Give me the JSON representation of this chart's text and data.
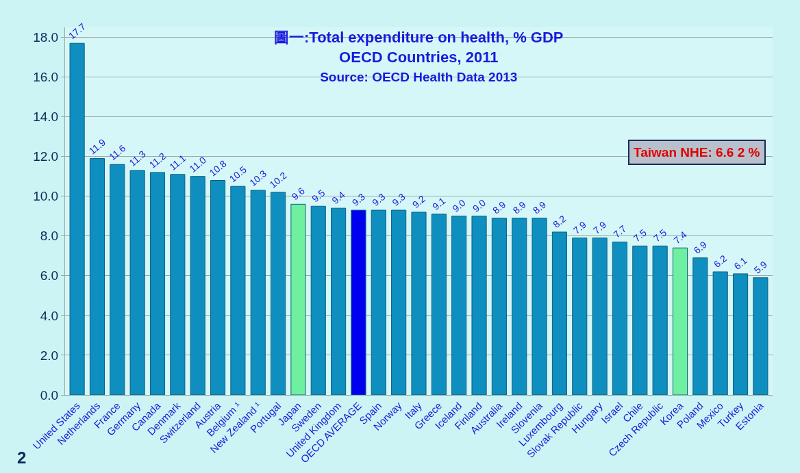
{
  "chart_data": {
    "type": "bar",
    "title": "圖一:Total expenditure on health, % GDP\nOECD Countries, 2011",
    "subtitle": "Source: OECD Health Data 2013",
    "categories": [
      "United States",
      "Netherlands",
      "France",
      "Germany",
      "Canada",
      "Denmark",
      "Switzerland",
      "Austria",
      "Belgium ¹",
      "New Zealand ¹",
      "Portugal",
      "Japan",
      "Sweden",
      "United Kingdom",
      "OECD AVERAGE",
      "Spain",
      "Norway",
      "Italy",
      "Greece",
      "Iceland",
      "Finland",
      "Australia",
      "Ireland",
      "Slovenia",
      "Luxembourg",
      "Slovak Republic",
      "Hungary",
      "Israel",
      "Chile",
      "Czech Republic",
      "Korea",
      "Poland",
      "Mexico",
      "Turkey",
      "Estonia"
    ],
    "values": [
      17.7,
      11.9,
      11.6,
      11.3,
      11.2,
      11.1,
      11.0,
      10.8,
      10.5,
      10.3,
      10.2,
      9.6,
      9.5,
      9.4,
      9.3,
      9.3,
      9.3,
      9.2,
      9.1,
      9.0,
      9.0,
      8.9,
      8.9,
      8.9,
      8.2,
      7.9,
      7.9,
      7.7,
      7.5,
      7.5,
      7.4,
      6.9,
      6.2,
      6.1,
      5.9
    ],
    "colors": [
      "#0f8fbf",
      "#0f8fbf",
      "#0f8fbf",
      "#0f8fbf",
      "#0f8fbf",
      "#0f8fbf",
      "#0f8fbf",
      "#0f8fbf",
      "#0f8fbf",
      "#0f8fbf",
      "#0f8fbf",
      "#6ef0a0",
      "#0f8fbf",
      "#0f8fbf",
      "#0000ee",
      "#0f8fbf",
      "#0f8fbf",
      "#0f8fbf",
      "#0f8fbf",
      "#0f8fbf",
      "#0f8fbf",
      "#0f8fbf",
      "#0f8fbf",
      "#0f8fbf",
      "#0f8fbf",
      "#0f8fbf",
      "#0f8fbf",
      "#0f8fbf",
      "#0f8fbf",
      "#0f8fbf",
      "#6ef0a0",
      "#0f8fbf",
      "#0f8fbf",
      "#0f8fbf",
      "#0f8fbf"
    ],
    "value_labels": [
      "17.7",
      "11.9",
      "11.6",
      "11.3",
      "11.2",
      "11.1",
      "11.0",
      "10.8",
      "10.5",
      "10.3",
      "10.2",
      "9.6",
      "9.5",
      "9.4",
      "9.3",
      "9.3",
      "9.3",
      "9.2",
      "9.1",
      "9.0",
      "9.0",
      "8.9",
      "8.9",
      "8.9",
      "8.2",
      "7.9",
      "7.9",
      "7.7",
      "7.5",
      "7.5",
      "7.4",
      "6.9",
      "6.2",
      "6.1",
      "5.9"
    ],
    "ylim": [
      0,
      18.5
    ],
    "yticks": [
      {
        "value": 0,
        "label": "0.0"
      },
      {
        "value": 2,
        "label": "2.0"
      },
      {
        "value": 4,
        "label": "4.0"
      },
      {
        "value": 6,
        "label": "6.0"
      },
      {
        "value": 8,
        "label": "8.0"
      },
      {
        "value": 10,
        "label": "10.0"
      },
      {
        "value": 12,
        "label": "12.0"
      },
      {
        "value": 14,
        "label": "14.0"
      },
      {
        "value": 16,
        "label": "16.0"
      },
      {
        "value": 18,
        "label": "18.0"
      }
    ],
    "grid": "y",
    "legend": false,
    "annotations": [
      "Taiwan NHE: 6.6 2 %",
      "2"
    ]
  }
}
